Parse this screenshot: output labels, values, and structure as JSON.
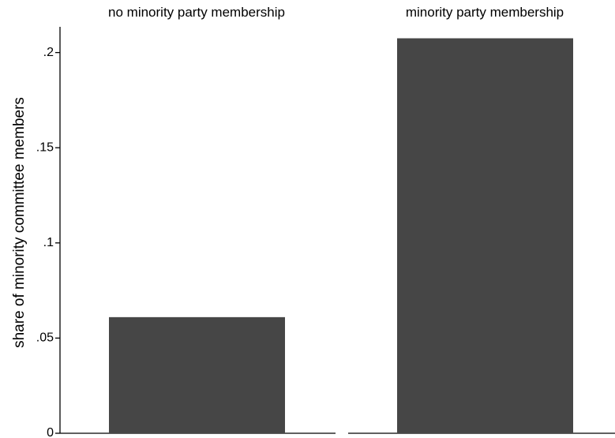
{
  "chart_data": {
    "type": "bar",
    "title": "",
    "xlabel": "",
    "ylabel": "share of minority committee members",
    "ylim": [
      0,
      0.215
    ],
    "yticks": [
      {
        "value": 0,
        "label": "0"
      },
      {
        "value": 0.05,
        "label": ".05"
      },
      {
        "value": 0.1,
        "label": ".1"
      },
      {
        "value": 0.15,
        "label": ".15"
      },
      {
        "value": 0.2,
        "label": ".2"
      }
    ],
    "grid": false,
    "legend": "none",
    "bar_color": "#464646",
    "panels": [
      {
        "label": "no minority party membership",
        "value": 0.061
      },
      {
        "label": "minority party membership",
        "value": 0.2075
      }
    ]
  }
}
